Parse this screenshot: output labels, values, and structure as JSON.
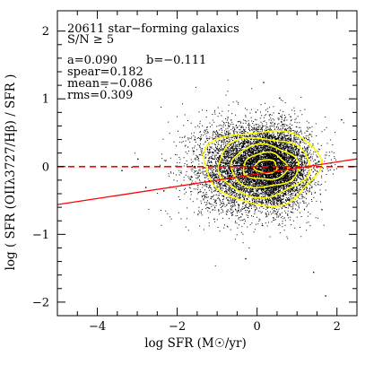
{
  "chart_data": {
    "type": "scatter",
    "xlabel": "log SFR (M☉/yr)",
    "ylabel": "log ( SFR (OIIλ3727/Hβ) / SFR )",
    "xlim": [
      -5,
      2.5
    ],
    "ylim": [
      -2.2,
      2.3
    ],
    "xticks": [
      -4,
      -2,
      0,
      2
    ],
    "xtick_labels": [
      "−4",
      "−2",
      "0",
      "2"
    ],
    "yticks": [
      -2,
      -1,
      0,
      1,
      2
    ],
    "ytick_labels": [
      "−2",
      "−1",
      "0",
      "1",
      "2"
    ],
    "grid": false,
    "annotations": {
      "line1": "20611 star−forming galaxics",
      "line2": "S/N ≥ 5",
      "line3_a": "a=0.090",
      "line3_b": "b=−0.111",
      "line4": "spear=0.182",
      "line5": "mean=−0.086",
      "line6": "rms=0.309"
    },
    "scatter": {
      "n_points": 20611,
      "center": [
        0.2,
        0.0
      ],
      "spread_x": 0.6,
      "spread_y": 0.3
    },
    "fit_line": {
      "slope": 0.09,
      "intercept": -0.111,
      "color": "#ff0000",
      "style": "solid"
    },
    "zero_line": {
      "y": 0,
      "color": "#ff0000",
      "style": "dashed"
    },
    "contours": {
      "color": "#ffff00",
      "center": [
        0.25,
        0.0
      ],
      "levels": [
        {
          "rx": 1.45,
          "ry": 0.55
        },
        {
          "rx": 1.15,
          "ry": 0.43
        },
        {
          "rx": 0.85,
          "ry": 0.31
        },
        {
          "rx": 0.55,
          "ry": 0.2
        },
        {
          "rx": 0.28,
          "ry": 0.1
        }
      ]
    },
    "outliers": [
      [
        -3.8,
        1.18
      ],
      [
        -3.15,
        0.0
      ],
      [
        -3.0,
        0.12
      ],
      [
        -3.4,
        -0.05
      ],
      [
        -2.8,
        -0.3
      ],
      [
        -2.35,
        -0.35
      ],
      [
        1.4,
        -1.55
      ],
      [
        1.7,
        -1.9
      ],
      [
        0.15,
        1.25
      ],
      [
        0.55,
        1.02
      ],
      [
        -0.3,
        -1.35
      ],
      [
        2.1,
        0.7
      ]
    ]
  }
}
